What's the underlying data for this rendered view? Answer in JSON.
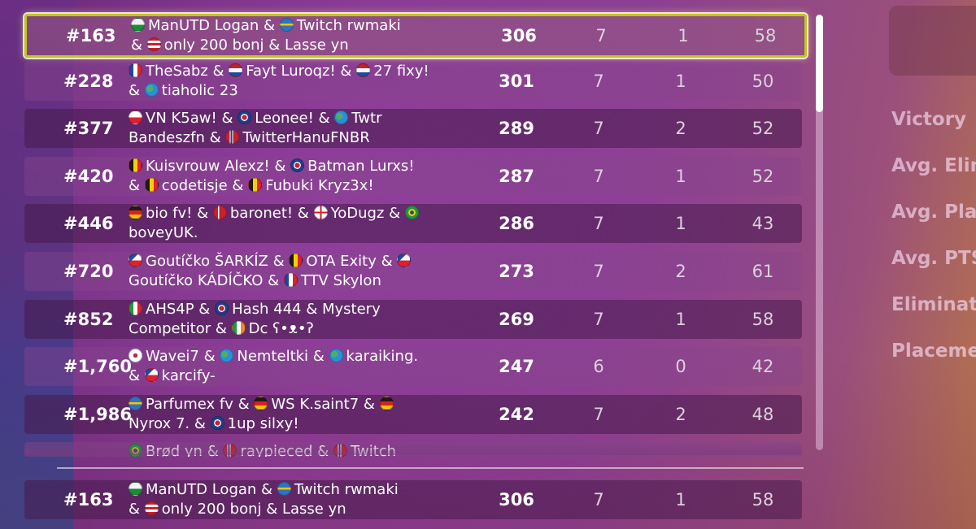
{
  "flags": {
    "wales": "linear-gradient(180deg,#f4f4f4 50%,#1d8a3a 50%)",
    "sweden": "linear-gradient(180deg,#2f74c0 40%,#f5c400 40%,#f5c400 58%,#2f74c0 58%)",
    "usa": "repeating-linear-gradient(180deg,#c8202e 0 3px,#ffffff 3px 6px)",
    "france": "linear-gradient(90deg,#1b46a6 33%,#ffffff 33%,#ffffff 66%,#e0202e 66%)",
    "netherlands": "linear-gradient(180deg,#c8202e 33%,#ffffff 33%,#ffffff 66%,#1f4aa0 66%)",
    "world": "radial-gradient(circle at 35% 40%,#47b06a 30%,#2c8fd6 32%)",
    "poland": "linear-gradient(180deg,#ffffff 50%,#dd2030 50%)",
    "uk": "radial-gradient(circle,#c8202e 28%,#ffffff 30%,#ffffff 40%,#1d3f8f 42%)",
    "norway": "linear-gradient(90deg,#c8202e 30%,#ffffff 30%,#ffffff 36%,#1d3f8f 36%,#1d3f8f 50%,#ffffff 50%,#ffffff 56%,#c8202e 56%)",
    "belgium": "linear-gradient(90deg,#1b1b1b 33%,#f5d000 33%,#f5d000 66%,#e0202e 66%)",
    "germany": "linear-gradient(180deg,#1b1b1b 33%,#dd1f1f 33%,#dd1f1f 66%,#f5c400 66%)",
    "denmark": "linear-gradient(90deg,#c8202e 32%,#ffffff 32%,#ffffff 42%,#c8202e 42%)",
    "england": "linear-gradient(90deg,rgba(0,0,0,0) 42%,#d0202e 42%,#d0202e 58%,rgba(0,0,0,0) 58%),linear-gradient(180deg,#ffffff 42%,#d0202e 42%,#d0202e 58%,#ffffff 58%)",
    "brazil": "radial-gradient(circle,#1f4aa0 22%,#f5d000 24%,#f5d000 40%,#1e9a3c 42%)",
    "czech": "linear-gradient(135deg,#1f4aa0 34%,rgba(0,0,0,0) 34%),linear-gradient(180deg,#ffffff 50%,#dd2030 50%)",
    "italy": "linear-gradient(90deg,#1e9a3c 33%,#ffffff 33%,#ffffff 66%,#dd2030 66%)",
    "ireland": "linear-gradient(90deg,#1e9a3c 33%,#ffffff 33%,#ffffff 66%,#f08a24 66%)",
    "korea": "radial-gradient(circle,#dd2030 18%,#1f4aa0 20%,#1f4aa0 24%,#ffffff 26%)"
  },
  "rows": [
    {
      "rank": "#163",
      "points": "306",
      "matches": "7",
      "wins": "1",
      "elims": "58",
      "lines": [
        [
          [
            "wales",
            "ManUTD Logan &"
          ],
          [
            "sweden",
            "Twitch rwmaki"
          ]
        ],
        [
          [
            null,
            "&"
          ],
          [
            "usa",
            "only 200 bonj & Lasse yn"
          ]
        ]
      ]
    },
    {
      "rank": "#228",
      "points": "301",
      "matches": "7",
      "wins": "1",
      "elims": "50",
      "lines": [
        [
          [
            "france",
            "TheSabz &"
          ],
          [
            "netherlands",
            "Fayt Luroqz! &"
          ],
          [
            "netherlands",
            "27 fixy!"
          ]
        ],
        [
          [
            null,
            "&"
          ],
          [
            "world",
            "tiaholic 23"
          ]
        ]
      ]
    },
    {
      "rank": "#377",
      "points": "289",
      "matches": "7",
      "wins": "2",
      "elims": "52",
      "lines": [
        [
          [
            "poland",
            "VN K5aw! &"
          ],
          [
            "uk",
            "Leonee! &"
          ],
          [
            "world",
            "Twtr"
          ]
        ],
        [
          [
            null,
            "Bandeszfn &"
          ],
          [
            "norway",
            "TwitterHanuFNBR"
          ]
        ]
      ]
    },
    {
      "rank": "#420",
      "points": "287",
      "matches": "7",
      "wins": "1",
      "elims": "52",
      "lines": [
        [
          [
            "belgium",
            "Kuisvrouw Alexz! &"
          ],
          [
            "uk",
            "Batman Lurxs!"
          ]
        ],
        [
          [
            null,
            "&"
          ],
          [
            "belgium",
            "codetisje &"
          ],
          [
            "belgium",
            "Fubuki Kryz3x!"
          ]
        ]
      ]
    },
    {
      "rank": "#446",
      "points": "286",
      "matches": "7",
      "wins": "1",
      "elims": "43",
      "lines": [
        [
          [
            "germany",
            "bio fv! &"
          ],
          [
            "denmark",
            "baronet! &"
          ],
          [
            "england",
            "YoDugz &"
          ],
          [
            "brazil",
            ""
          ]
        ],
        [
          [
            null,
            "boveyUK."
          ]
        ]
      ]
    },
    {
      "rank": "#720",
      "points": "273",
      "matches": "7",
      "wins": "2",
      "elims": "61",
      "lines": [
        [
          [
            "czech",
            "Goutíčko ŠARKÍZ &"
          ],
          [
            "belgium",
            "OTA Exity &"
          ],
          [
            "czech",
            ""
          ]
        ],
        [
          [
            null,
            "Goutíčko KÁDÍČKO &"
          ],
          [
            "france",
            "TTV Skylon"
          ]
        ]
      ]
    },
    {
      "rank": "#852",
      "points": "269",
      "matches": "7",
      "wins": "1",
      "elims": "58",
      "lines": [
        [
          [
            "italy",
            "AHS4P &"
          ],
          [
            "uk",
            "Hash 444 & Mystery"
          ]
        ],
        [
          [
            null,
            "Competitor &"
          ],
          [
            "ireland",
            "Dc ʕ•ᴥ•ʔ"
          ]
        ]
      ]
    },
    {
      "rank": "#1,760",
      "points": "247",
      "matches": "6",
      "wins": "0",
      "elims": "42",
      "lines": [
        [
          [
            "korea",
            "Wavei7 &"
          ],
          [
            "world",
            "Nemteltki &"
          ],
          [
            "world",
            "karaiking."
          ]
        ],
        [
          [
            null,
            "&"
          ],
          [
            "czech",
            "karcify-"
          ]
        ]
      ]
    },
    {
      "rank": "#1,986",
      "points": "242",
      "matches": "7",
      "wins": "2",
      "elims": "48",
      "lines": [
        [
          [
            "sweden",
            "Parfumex fv &"
          ],
          [
            "germany",
            "WS K.saint7 &"
          ],
          [
            "germany",
            ""
          ]
        ],
        [
          [
            null,
            "Nyrox 7. &"
          ],
          [
            "uk",
            "1up silxy!"
          ]
        ]
      ]
    },
    {
      "rank": "",
      "points": "",
      "matches": "",
      "wins": "",
      "elims": "",
      "lines": [
        [
          [
            "brazil",
            "Brød yn &"
          ],
          [
            "norway",
            "raypieced &"
          ],
          [
            "norway",
            "Twitch"
          ]
        ]
      ]
    }
  ],
  "own_row": {
    "rank": "#163",
    "points": "306",
    "matches": "7",
    "wins": "1",
    "elims": "58",
    "lines": [
      [
        [
          "wales",
          "ManUTD Logan &"
        ],
        [
          "sweden",
          "Twitch rwmaki"
        ]
      ],
      [
        [
          null,
          "&"
        ],
        [
          "usa",
          "only 200 bonj & Lasse yn"
        ]
      ]
    ]
  },
  "stats_panel": {
    "labels": [
      "Victory",
      "Avg. Elin",
      "Avg. Pla",
      "Avg. PTS",
      "Eliminat",
      "Placeme"
    ]
  }
}
